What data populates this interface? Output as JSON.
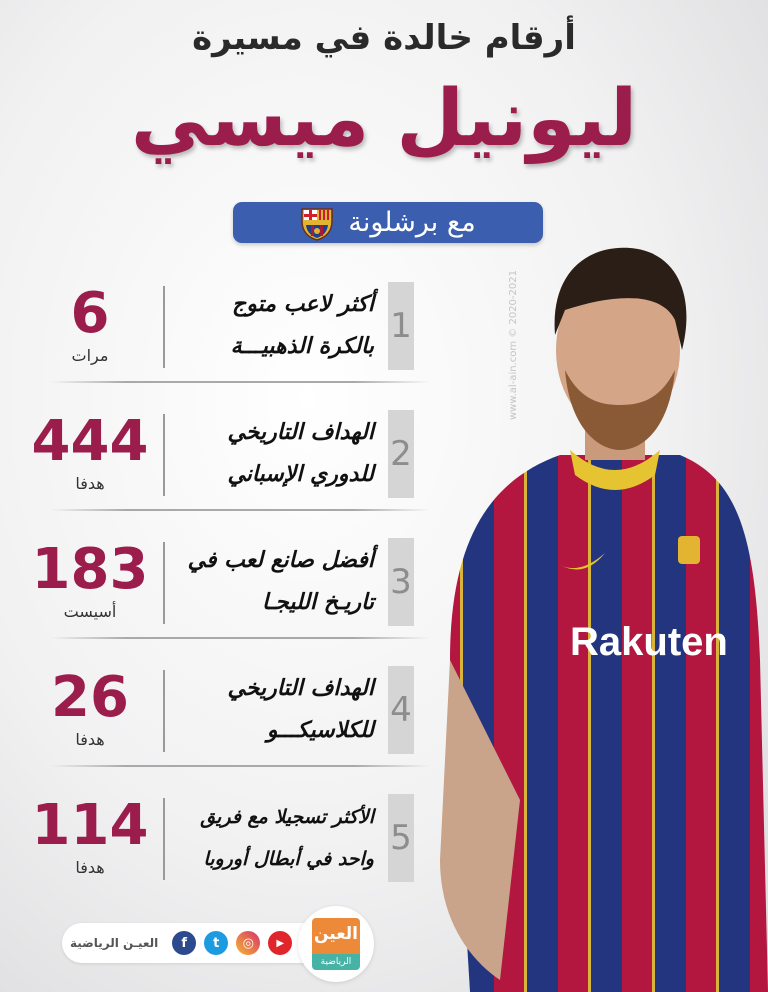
{
  "header": {
    "title_line1": "أرقام خالدة في مسيرة",
    "title_main": "ليونيل ميسي",
    "subtitle": "مع برشلونة",
    "subtitle_bg": "#3b5fae",
    "accent": "#9b1d4c"
  },
  "records": [
    {
      "rank": "1",
      "text": "أكثر لاعب متوج بالكرة الذهبيـــة",
      "value": "6",
      "unit": "مرات"
    },
    {
      "rank": "2",
      "text": "الهداف التاريخي للدوري الإسباني",
      "value": "444",
      "unit": "هدفا"
    },
    {
      "rank": "3",
      "text": "أفضل صانع لعب في تاريـخ الليجـا",
      "value": "183",
      "unit": "أسيست"
    },
    {
      "rank": "4",
      "text": "الهداف التاريخي للكلاسيكـــو",
      "value": "26",
      "unit": "هدفا"
    },
    {
      "rank": "5",
      "text": "الأكثر تسجيلا مع فريق واحد في أبطال أوروبا",
      "value": "114",
      "unit": "هدفا"
    }
  ],
  "watermark": {
    "site": "www.al-ain.com",
    "years": "© 2020-2021"
  },
  "photo": {
    "shirt_sponsor": "Rakuten"
  },
  "footer": {
    "brand": "العيـن الرياضية",
    "logo_top": "العين",
    "logo_bottom": "الرياضية",
    "socials": [
      {
        "icon": "youtube-icon",
        "glyph": "▶",
        "color": "#e0262b"
      },
      {
        "icon": "instagram-icon",
        "glyph": "◎",
        "color": "#e8544a"
      },
      {
        "icon": "twitter-icon",
        "glyph": "t",
        "color": "#1d9be0"
      },
      {
        "icon": "facebook-icon",
        "glyph": "f",
        "color": "#2c4a8e"
      }
    ]
  }
}
